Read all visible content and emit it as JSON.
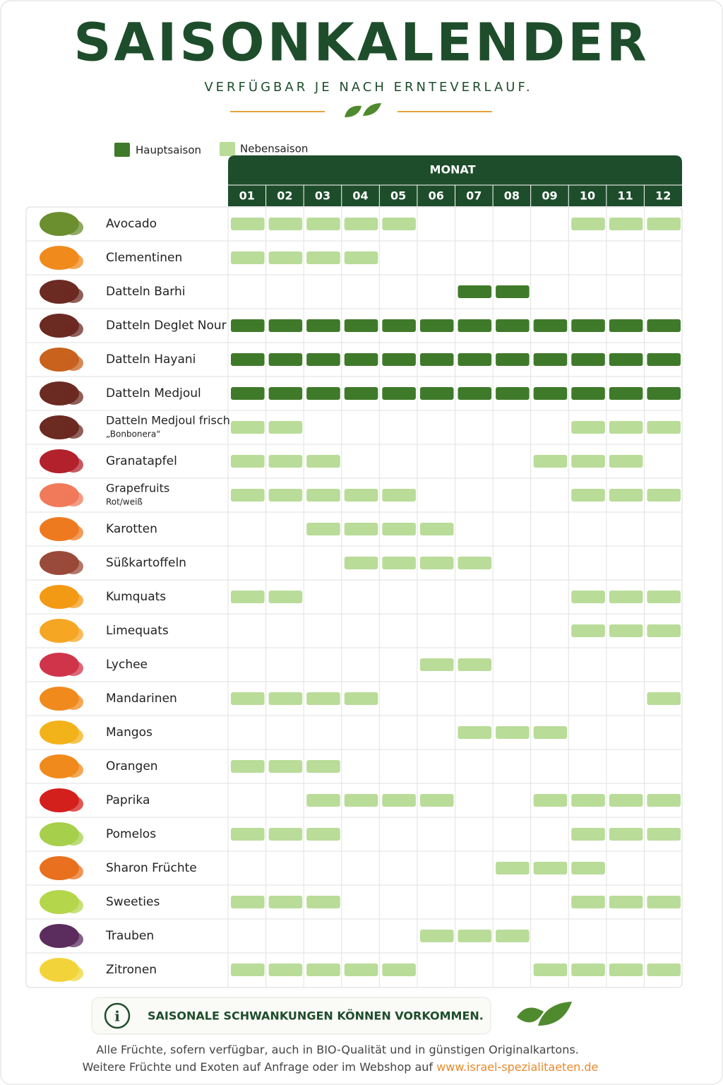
{
  "header": {
    "title": "SAISONKALENDER",
    "subtitle": "VERFÜGBAR JE NACH ERNTEVERLAUF."
  },
  "legend": {
    "main": "Hauptsaison",
    "secondary": "Nebensaison"
  },
  "table": {
    "group_header": "MONAT",
    "months": [
      "01",
      "02",
      "03",
      "04",
      "05",
      "06",
      "07",
      "08",
      "09",
      "10",
      "11",
      "12"
    ],
    "rows": [
      {
        "name": "Avocado",
        "nebensaison": [
          1,
          2,
          3,
          4,
          5,
          10,
          11,
          12
        ]
      },
      {
        "name": "Clementinen",
        "nebensaison": [
          1,
          2,
          3,
          4
        ]
      },
      {
        "name": "Datteln Barhi",
        "hauptsaison": [
          7,
          8
        ]
      },
      {
        "name": "Datteln Deglet Nour",
        "hauptsaison": [
          1,
          2,
          3,
          4,
          5,
          6,
          7,
          8,
          9,
          10,
          11,
          12
        ]
      },
      {
        "name": "Datteln Hayani",
        "hauptsaison": [
          1,
          2,
          3,
          4,
          5,
          6,
          7,
          8,
          9,
          10,
          11,
          12
        ]
      },
      {
        "name": "Datteln Medjoul",
        "hauptsaison": [
          1,
          2,
          3,
          4,
          5,
          6,
          7,
          8,
          9,
          10,
          11,
          12
        ]
      },
      {
        "name": "Datteln Medjoul frisch",
        "sub": "„Bonbonera“",
        "nebensaison": [
          1,
          2,
          10,
          11,
          12
        ]
      },
      {
        "name": "Granatapfel",
        "nebensaison": [
          1,
          2,
          3,
          9,
          10,
          11
        ]
      },
      {
        "name": "Grapefruits",
        "sub": "Rot/weiß",
        "nebensaison": [
          1,
          2,
          3,
          4,
          5,
          10,
          11,
          12
        ]
      },
      {
        "name": "Karotten",
        "nebensaison": [
          3,
          4,
          5,
          6
        ]
      },
      {
        "name": "Süßkartoffeln",
        "nebensaison": [
          4,
          5,
          6,
          7
        ]
      },
      {
        "name": "Kumquats",
        "nebensaison": [
          1,
          2,
          10,
          11,
          12
        ]
      },
      {
        "name": "Limequats",
        "nebensaison": [
          10,
          11,
          12
        ]
      },
      {
        "name": "Lychee",
        "nebensaison": [
          6,
          7
        ]
      },
      {
        "name": "Mandarinen",
        "nebensaison": [
          1,
          2,
          3,
          4,
          12
        ]
      },
      {
        "name": "Mangos",
        "nebensaison": [
          7,
          8,
          9
        ]
      },
      {
        "name": "Orangen",
        "nebensaison": [
          1,
          2,
          3
        ]
      },
      {
        "name": "Paprika",
        "nebensaison": [
          3,
          4,
          5,
          6,
          9,
          10,
          11,
          12
        ]
      },
      {
        "name": "Pomelos",
        "nebensaison": [
          1,
          2,
          3,
          10,
          11,
          12
        ]
      },
      {
        "name": "Sharon Früchte",
        "nebensaison": [
          8,
          9,
          10
        ]
      },
      {
        "name": "Sweeties",
        "nebensaison": [
          1,
          2,
          3,
          10,
          11,
          12
        ]
      },
      {
        "name": "Trauben",
        "nebensaison": [
          6,
          7,
          8
        ]
      },
      {
        "name": "Zitronen",
        "nebensaison": [
          1,
          2,
          3,
          4,
          5,
          9,
          10,
          11,
          12
        ]
      }
    ]
  },
  "notice": "SAISONALE SCHWANKUNGEN KÖNNEN VORKOMMEN.",
  "footer": {
    "line1": "Alle Früchte, sofern verfügbar, auch in BIO-Qualität und in günstigen Originalkartons.",
    "line2": "Weitere Früchte und Exoten auf Anfrage oder im Webshop auf",
    "link": "www.israel-spezialitaeten.de"
  }
}
